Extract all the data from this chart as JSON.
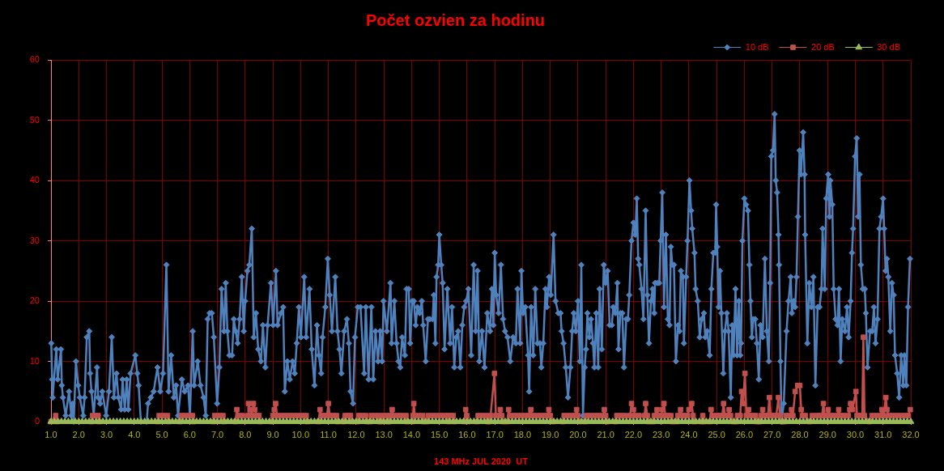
{
  "chart_data": {
    "type": "line",
    "title": "Počet ozvien za hodinu",
    "xlabel": "143 MHz JUL 2020  UT",
    "xlim": [
      1,
      32
    ],
    "xticks": [
      {
        "value": 1,
        "label": "1.0"
      },
      {
        "value": 2,
        "label": "2.0"
      },
      {
        "value": 3,
        "label": "3.0"
      },
      {
        "value": 4,
        "label": "4.0"
      },
      {
        "value": 5,
        "label": "5.0"
      },
      {
        "value": 6,
        "label": "6.0"
      },
      {
        "value": 7,
        "label": "7.0"
      },
      {
        "value": 8,
        "label": "8.0"
      },
      {
        "value": 9,
        "label": "9.0"
      },
      {
        "value": 10,
        "label": "10.0"
      },
      {
        "value": 11,
        "label": "11.0"
      },
      {
        "value": 12,
        "label": "12.0"
      },
      {
        "value": 13,
        "label": "13.0"
      },
      {
        "value": 14,
        "label": "14.0"
      },
      {
        "value": 15,
        "label": "15.0"
      },
      {
        "value": 16,
        "label": "16.0"
      },
      {
        "value": 17,
        "label": "17.0"
      },
      {
        "value": 18,
        "label": "18.0"
      },
      {
        "value": 19,
        "label": "19.0"
      },
      {
        "value": 20,
        "label": "20.0"
      },
      {
        "value": 21,
        "label": "21.0"
      },
      {
        "value": 22,
        "label": "22.0"
      },
      {
        "value": 23,
        "label": "23.0"
      },
      {
        "value": 24,
        "label": "24.0"
      },
      {
        "value": 25,
        "label": "25.0"
      },
      {
        "value": 26,
        "label": "26.0"
      },
      {
        "value": 27,
        "label": "27.0"
      },
      {
        "value": 28,
        "label": "28.0"
      },
      {
        "value": 29,
        "label": "29.0"
      },
      {
        "value": 30,
        "label": "30.0"
      },
      {
        "value": 31,
        "label": "31.0"
      },
      {
        "value": 32,
        "label": "32.0"
      }
    ],
    "ylim": [
      0,
      60
    ],
    "yticks": [
      0,
      10,
      20,
      30,
      40,
      50,
      60
    ],
    "grid": true,
    "legend": "top right",
    "series": [
      {
        "name": "10 dB",
        "color": "#4f81bd",
        "marker": "diamond",
        "x": [
          1.01,
          1.04,
          1.06,
          1.19,
          1.24,
          1.36,
          1.39,
          1.43,
          1.53,
          1.65,
          1.73,
          1.78,
          1.82,
          1.9,
          1.98,
          2.04,
          2.16,
          2.21,
          2.29,
          2.38,
          2.41,
          2.46,
          2.54,
          2.66,
          2.7,
          2.77,
          2.85,
          2.99,
          3.09,
          3.19,
          3.27,
          3.36,
          3.43,
          3.53,
          3.58,
          3.66,
          3.73,
          3.79,
          3.87,
          4.04,
          4.11,
          4.16,
          4.24,
          4.45,
          4.5,
          4.6,
          4.7,
          4.84,
          4.94,
          5.04,
          5.16,
          5.24,
          5.33,
          5.43,
          5.51,
          5.58,
          5.72,
          5.82,
          5.94,
          6.01,
          6.11,
          6.16,
          6.29,
          6.39,
          6.5,
          6.58,
          6.65,
          6.72,
          6.8,
          6.87,
          6.99,
          7.07,
          7.15,
          7.24,
          7.3,
          7.36,
          7.43,
          7.53,
          7.59,
          7.66,
          7.73,
          7.8,
          7.88,
          7.95,
          8.0,
          8.08,
          8.15,
          8.24,
          8.31,
          8.39,
          8.47,
          8.57,
          8.64,
          8.73,
          8.81,
          8.93,
          9.01,
          9.11,
          9.17,
          9.29,
          9.37,
          9.43,
          9.52,
          9.61,
          9.71,
          9.79,
          9.86,
          9.94,
          10.01,
          10.13,
          10.2,
          10.32,
          10.4,
          10.5,
          10.59,
          10.66,
          10.74,
          10.79,
          10.89,
          10.98,
          11.05,
          11.13,
          11.25,
          11.33,
          11.4,
          11.47,
          11.57,
          11.67,
          11.74,
          11.8,
          11.89,
          11.96,
          12.06,
          12.16,
          12.29,
          12.35,
          12.45,
          12.55,
          12.62,
          12.7,
          12.79,
          12.87,
          12.94,
          12.99,
          13.11,
          13.24,
          13.28,
          13.38,
          13.46,
          13.53,
          13.59,
          13.66,
          13.76,
          13.82,
          13.9,
          13.95,
          14.02,
          14.08,
          14.15,
          14.21,
          14.29,
          14.37,
          14.42,
          14.51,
          14.59,
          14.66,
          14.76,
          14.8,
          14.86,
          14.9,
          14.96,
          15.0,
          15.07,
          15.12,
          15.19,
          15.29,
          15.39,
          15.46,
          15.54,
          15.61,
          15.68,
          15.76,
          15.83,
          15.9,
          15.97,
          16.05,
          16.15,
          16.24,
          16.31,
          16.38,
          16.44,
          16.54,
          16.63,
          16.73,
          16.83,
          16.9,
          16.95,
          17.0,
          17.05,
          17.14,
          17.22,
          17.3,
          17.37,
          17.46,
          17.56,
          17.66,
          17.76,
          17.82,
          17.92,
          17.96,
          18.02,
          18.1,
          18.2,
          18.24,
          18.31,
          18.39,
          18.46,
          18.54,
          18.63,
          18.68,
          18.75,
          18.83,
          18.88,
          18.96,
          19.02,
          19.12,
          19.19,
          19.29,
          19.37,
          19.41,
          19.48,
          19.56,
          19.64,
          19.73,
          19.79,
          19.85,
          19.92,
          20.0,
          20.07,
          20.12,
          20.18,
          20.24,
          20.29,
          20.34,
          20.41,
          20.47,
          20.54,
          20.59,
          20.66,
          20.73,
          20.78,
          20.86,
          20.93,
          21.0,
          21.07,
          21.14,
          21.22,
          21.27,
          21.35,
          21.42,
          21.46,
          21.53,
          21.6,
          21.66,
          21.74,
          21.8,
          21.85,
          21.93,
          22.0,
          22.07,
          22.12,
          22.17,
          22.21,
          22.29,
          22.36,
          22.44,
          22.5,
          22.56,
          22.63,
          22.69,
          22.75,
          22.78,
          22.86,
          22.93,
          22.98,
          23.04,
          23.1,
          23.17,
          23.24,
          23.3,
          23.35,
          23.4,
          23.46,
          23.53,
          23.61,
          23.66,
          23.71,
          23.78,
          23.82,
          23.9,
          23.95,
          24.02,
          24.08,
          24.12,
          24.2,
          24.24,
          24.32,
          24.39,
          24.46,
          24.54,
          24.59,
          24.66,
          24.75,
          24.81,
          24.88,
          24.95,
          24.98,
          25.02,
          25.07,
          25.12,
          25.17,
          25.24,
          25.3,
          25.37,
          25.43,
          25.51,
          25.56,
          25.61,
          25.68,
          25.74,
          25.8,
          25.85,
          25.88,
          25.93,
          26.0,
          26.06,
          26.13,
          26.18,
          26.22,
          26.27,
          26.32,
          26.39,
          26.45,
          26.52,
          26.58,
          26.66,
          26.74,
          26.81,
          26.88,
          26.93,
          26.97,
          27.03,
          27.09,
          27.13,
          27.18,
          27.23,
          27.25,
          27.3,
          27.34,
          27.42,
          27.52,
          27.59,
          27.67,
          27.71,
          27.78,
          27.83,
          27.88,
          27.93,
          27.99,
          28.04,
          28.12,
          28.17,
          28.19,
          28.27,
          28.34,
          28.42,
          28.49,
          28.56,
          28.64,
          28.71,
          28.78,
          28.82,
          28.9,
          28.95,
          29.02,
          29.07,
          29.1,
          29.17,
          29.22,
          29.29,
          29.36,
          29.41,
          29.47,
          29.53,
          29.63,
          29.7,
          29.76,
          29.83,
          29.88,
          29.92,
          29.99,
          30.05,
          30.1,
          30.15,
          30.2,
          30.27,
          30.34,
          30.38,
          30.44,
          30.53,
          30.61,
          30.67,
          30.73,
          30.8,
          30.87,
          30.93,
          31.0,
          31.04,
          31.09,
          31.14,
          31.19,
          31.26,
          31.32,
          31.38,
          31.43,
          31.51,
          31.58,
          31.65,
          31.73,
          31.77,
          31.84,
          31.9,
          31.97
        ],
        "values": [
          13,
          7,
          4,
          12,
          7,
          12,
          6,
          4,
          1,
          5,
          1,
          3,
          0,
          10,
          6,
          4,
          1,
          4,
          14,
          15,
          8,
          5,
          1,
          9,
          4,
          3,
          5,
          1,
          5,
          14,
          4,
          8,
          4,
          2,
          7,
          2,
          7,
          2,
          8,
          11,
          8,
          6,
          0,
          0,
          3,
          4,
          5,
          9,
          5,
          8,
          26,
          5,
          11,
          4,
          6,
          1,
          7,
          5,
          6,
          1,
          15,
          6,
          10,
          6,
          4,
          1,
          17,
          18,
          18,
          14,
          3,
          9,
          22,
          15,
          23,
          15,
          11,
          11,
          17,
          15,
          13,
          17,
          24,
          15,
          20,
          25,
          26,
          32,
          14,
          18,
          12,
          10,
          16,
          9,
          16,
          23,
          16,
          25,
          16,
          18,
          19,
          5,
          10,
          7,
          10,
          8,
          13,
          19,
          14,
          24,
          14,
          22,
          12,
          6,
          16,
          11,
          8,
          14,
          19,
          27,
          21,
          15,
          24,
          15,
          12,
          8,
          15,
          17,
          13,
          5,
          3,
          14,
          19,
          19,
          8,
          19,
          7,
          19,
          7,
          15,
          10,
          15,
          10,
          20,
          15,
          23,
          13,
          20,
          13,
          10,
          9,
          14,
          11,
          22,
          22,
          13,
          20,
          20,
          16,
          19,
          18,
          20,
          16,
          10,
          17,
          17,
          17,
          21,
          13,
          24,
          26,
          31,
          26,
          23,
          12,
          22,
          13,
          19,
          9,
          14,
          15,
          9,
          16,
          19,
          20,
          22,
          11,
          26,
          15,
          25,
          10,
          15,
          9,
          18,
          15,
          22,
          16,
          28,
          21,
          18,
          26,
          17,
          15,
          14,
          10,
          14,
          13,
          22,
          13,
          25,
          18,
          19,
          11,
          5,
          19,
          11,
          22,
          13,
          13,
          9,
          13,
          22,
          19,
          24,
          21,
          31,
          20,
          18,
          18,
          15,
          13,
          9,
          4,
          9,
          15,
          18,
          15,
          20,
          10,
          26,
          1,
          9,
          12,
          18,
          14,
          17,
          13,
          9,
          18,
          9,
          22,
          12,
          26,
          23,
          25,
          16,
          16,
          19,
          18,
          23,
          12,
          18,
          18,
          9,
          17,
          17,
          21,
          30,
          33,
          31,
          37,
          27,
          26,
          22,
          17,
          35,
          21,
          13,
          20,
          22,
          18,
          23,
          23,
          23,
          30,
          38,
          19,
          31,
          17,
          16,
          29,
          26,
          26,
          10,
          16,
          15,
          25,
          24,
          13,
          24,
          30,
          40,
          35,
          32,
          28,
          22,
          20,
          14,
          17,
          18,
          14,
          15,
          11,
          22,
          28,
          28,
          36,
          29,
          19,
          25,
          18,
          8,
          15,
          18,
          15,
          4,
          16,
          11,
          22,
          11,
          20,
          11,
          13,
          30,
          37,
          36,
          35,
          26,
          20,
          14,
          17,
          17,
          13,
          7,
          16,
          14,
          27,
          15,
          10,
          23,
          44,
          45,
          51,
          40,
          38,
          31,
          26,
          10,
          0,
          3,
          15,
          20,
          24,
          18,
          20,
          19,
          24,
          34,
          45,
          41,
          48,
          41,
          31,
          13,
          23,
          19,
          24,
          6,
          19,
          19,
          22,
          32,
          22,
          37,
          41,
          34,
          40,
          36,
          22,
          17,
          16,
          22,
          10,
          17,
          15,
          19,
          14,
          20,
          28,
          32,
          44,
          47,
          34,
          41,
          26,
          22,
          22,
          18,
          9,
          15,
          15,
          19,
          13,
          17,
          32,
          34,
          37,
          32,
          25,
          27,
          24,
          15,
          23,
          21,
          11,
          8,
          4,
          11,
          6,
          11,
          6,
          19,
          27
        ]
      },
      {
        "name": "20 dB",
        "color": "#c0504d",
        "marker": "square",
        "x": [
          1.0,
          1.17,
          1.21,
          2.45,
          2.5,
          2.6,
          2.7,
          2.74,
          4.85,
          4.9,
          5.05,
          5.2,
          5.24,
          5.65,
          5.7,
          5.85,
          6.0,
          6.1,
          6.14,
          6.85,
          6.9,
          7.05,
          7.2,
          7.24,
          7.65,
          7.7,
          7.75,
          7.9,
          8.1,
          8.12,
          8.18,
          8.24,
          8.3,
          8.35,
          8.4,
          8.5,
          8.54,
          8.95,
          9.0,
          9.05,
          9.1,
          9.15,
          9.3,
          9.45,
          9.6,
          9.75,
          9.9,
          10.05,
          10.2,
          10.24,
          10.65,
          10.7,
          10.75,
          10.85,
          10.95,
          11.0,
          11.05,
          11.18,
          11.3,
          11.34,
          11.55,
          11.6,
          11.7,
          11.8,
          11.84,
          12.05,
          12.1,
          12.22,
          12.35,
          12.39,
          12.5,
          12.55,
          12.68,
          12.8,
          12.84,
          12.9,
          12.95,
          13.1,
          13.14,
          13.18,
          13.22,
          13.3,
          13.35,
          13.5,
          13.65,
          13.8,
          13.84,
          14.02,
          14.05,
          14.08,
          14.12,
          14.26,
          14.4,
          14.44,
          14.55,
          14.6,
          14.75,
          14.9,
          15.05,
          15.2,
          15.3,
          15.34,
          15.4,
          15.5,
          15.54,
          15.9,
          15.95,
          16.0,
          16.04,
          16.35,
          16.4,
          16.55,
          16.7,
          16.74,
          16.8,
          16.85,
          16.99,
          17.04,
          17.16,
          17.2,
          17.25,
          17.3,
          17.45,
          17.5,
          17.55,
          17.68,
          17.8,
          17.95,
          18.08,
          18.2,
          18.3,
          18.35,
          18.5,
          18.65,
          18.8,
          18.9,
          18.95,
          19.0,
          19.1,
          19.45,
          19.5,
          19.65,
          19.8,
          19.9,
          19.95,
          20.0,
          20.05,
          20.25,
          20.3,
          20.45,
          20.6,
          20.75,
          20.9,
          20.95,
          21.0,
          21.05,
          21.35,
          21.4,
          21.55,
          21.7,
          21.88,
          21.93,
          22.0,
          22.05,
          22.2,
          22.4,
          22.44,
          22.5,
          22.55,
          22.7,
          22.75,
          22.85,
          22.9,
          23.0,
          23.05,
          23.1,
          23.15,
          23.25,
          23.35,
          23.4,
          23.55,
          23.6,
          23.7,
          23.75,
          23.85,
          23.95,
          24.0,
          24.1,
          24.15,
          24.2,
          24.45,
          24.5,
          24.55,
          24.75,
          24.8,
          24.85,
          25.0,
          25.1,
          25.2,
          25.25,
          25.3,
          25.4,
          25.45,
          25.5,
          25.6,
          25.7,
          25.75,
          25.85,
          25.9,
          25.95,
          26.02,
          26.07,
          26.15,
          26.2,
          26.3,
          26.4,
          26.45,
          26.55,
          26.6,
          26.66,
          26.7,
          26.78,
          26.85,
          26.9,
          26.95,
          27.05,
          27.15,
          27.23,
          27.28,
          27.35,
          27.45,
          27.5,
          27.58,
          27.65,
          27.7,
          27.75,
          27.83,
          27.92,
          28.0,
          28.05,
          28.1,
          28.2,
          28.35,
          28.45,
          28.6,
          28.7,
          28.8,
          28.85,
          28.9,
          28.97,
          29.02,
          29.1,
          29.22,
          29.35,
          29.4,
          29.45,
          29.6,
          29.75,
          29.8,
          29.83,
          29.9,
          30.02,
          30.06,
          30.15,
          30.25,
          30.29,
          30.33,
          30.5,
          30.6,
          30.75,
          30.9,
          30.96,
          31.02,
          31.1,
          31.14,
          31.2,
          31.35,
          31.5,
          31.65,
          31.8,
          31.9,
          31.98
        ],
        "values": [
          0,
          1,
          0,
          0,
          1,
          1,
          1,
          0,
          0,
          1,
          1,
          1,
          0,
          0,
          1,
          1,
          1,
          1,
          0,
          0,
          1,
          1,
          1,
          0,
          0,
          2,
          1,
          1,
          1,
          3,
          2,
          1,
          3,
          2,
          1,
          1,
          0,
          0,
          1,
          2,
          3,
          1,
          1,
          1,
          1,
          1,
          1,
          1,
          1,
          0,
          0,
          2,
          1,
          1,
          1,
          3,
          1,
          1,
          1,
          0,
          0,
          1,
          1,
          1,
          0,
          0,
          1,
          1,
          1,
          0,
          0,
          1,
          1,
          1,
          0,
          0,
          1,
          1,
          0,
          0,
          1,
          2,
          1,
          1,
          1,
          1,
          0,
          0,
          1,
          3,
          1,
          1,
          1,
          0,
          0,
          1,
          1,
          1,
          1,
          1,
          1,
          0,
          1,
          1,
          0,
          0,
          2,
          1,
          0,
          0,
          1,
          1,
          1,
          0,
          0,
          1,
          8,
          1,
          1,
          2,
          1,
          0,
          0,
          2,
          1,
          1,
          1,
          1,
          1,
          1,
          2,
          1,
          1,
          1,
          1,
          1,
          2,
          1,
          0,
          0,
          1,
          1,
          1,
          1,
          2,
          1,
          0,
          0,
          1,
          1,
          1,
          1,
          1,
          2,
          1,
          0,
          0,
          1,
          1,
          1,
          1,
          3,
          2,
          1,
          1,
          1,
          3,
          1,
          0,
          0,
          1,
          2,
          1,
          1,
          2,
          3,
          1,
          1,
          1,
          0,
          0,
          1,
          2,
          1,
          1,
          1,
          2,
          3,
          1,
          0,
          0,
          1,
          0,
          0,
          2,
          1,
          1,
          1,
          1,
          3,
          1,
          1,
          2,
          1,
          0,
          0,
          1,
          1,
          5,
          3,
          8,
          1,
          2,
          1,
          1,
          1,
          0,
          0,
          1,
          2,
          1,
          1,
          1,
          4,
          1,
          1,
          1,
          4,
          1,
          0,
          0,
          1,
          1,
          1,
          2,
          1,
          5,
          6,
          6,
          2,
          1,
          1,
          0,
          1,
          1,
          1,
          1,
          3,
          1,
          1,
          2,
          1,
          1,
          1,
          2,
          1,
          1,
          1,
          2,
          3,
          2,
          5,
          1,
          1,
          1,
          14,
          1,
          0,
          1,
          1,
          1,
          2,
          1,
          4,
          2,
          1,
          1,
          1,
          1,
          1,
          1,
          2
        ]
      },
      {
        "name": "30 dB",
        "color": "#9bbb59",
        "marker": "triangle",
        "x": [
          1,
          1.125,
          1.25,
          1.375,
          1.5,
          1.625,
          1.75,
          1.875,
          2,
          2.125,
          2.25,
          2.375,
          2.5,
          2.625,
          2.75,
          2.875,
          3,
          3.125,
          3.25,
          3.375,
          3.5,
          3.625,
          3.75,
          3.875,
          4,
          4.125,
          4.25,
          4.375,
          4.5,
          4.625,
          4.75,
          4.875,
          5,
          5.125,
          5.25,
          5.375,
          5.5,
          5.625,
          5.75,
          5.875,
          6,
          6.125,
          6.25,
          6.375,
          6.5,
          6.625,
          6.75,
          6.875,
          7,
          7.125,
          7.25,
          7.375,
          7.5,
          7.625,
          7.75,
          7.875,
          8,
          8.125,
          8.25,
          8.375,
          8.5,
          8.625,
          8.75,
          8.875,
          9,
          9.125,
          9.25,
          9.375,
          9.5,
          9.625,
          9.75,
          9.875,
          10,
          10.125,
          10.25,
          10.375,
          10.5,
          10.625,
          10.75,
          10.875,
          11,
          11.125,
          11.25,
          11.375,
          11.5,
          11.625,
          11.75,
          11.875,
          12,
          12.125,
          12.25,
          12.375,
          12.5,
          12.625,
          12.75,
          12.875,
          13,
          13.125,
          13.25,
          13.375,
          13.5,
          13.625,
          13.75,
          13.875,
          14,
          14.125,
          14.25,
          14.375,
          14.5,
          14.625,
          14.75,
          14.875,
          15,
          15.125,
          15.25,
          15.375,
          15.5,
          15.625,
          15.75,
          15.875,
          16,
          16.125,
          16.25,
          16.375,
          16.5,
          16.625,
          16.75,
          16.875,
          17,
          17.125,
          17.25,
          17.375,
          17.5,
          17.625,
          17.75,
          17.875,
          18,
          18.125,
          18.25,
          18.375,
          18.5,
          18.625,
          18.75,
          18.875,
          19,
          19.125,
          19.25,
          19.375,
          19.5,
          19.625,
          19.75,
          19.875,
          20,
          20.125,
          20.25,
          20.375,
          20.5,
          20.625,
          20.75,
          20.875,
          21,
          21.125,
          21.25,
          21.375,
          21.5,
          21.625,
          21.75,
          21.875,
          22,
          22.125,
          22.25,
          22.375,
          22.5,
          22.625,
          22.75,
          22.875,
          23,
          23.125,
          23.25,
          23.375,
          23.5,
          23.625,
          23.75,
          23.875,
          24,
          24.125,
          24.25,
          24.375,
          24.5,
          24.625,
          24.75,
          24.875,
          25,
          25.125,
          25.25,
          25.375,
          25.5,
          25.625,
          25.75,
          25.875,
          26,
          26.125,
          26.25,
          26.375,
          26.5,
          26.625,
          26.75,
          26.875,
          27,
          27.125,
          27.25,
          27.375,
          27.5,
          27.625,
          27.75,
          27.875,
          28,
          28.125,
          28.25,
          28.375,
          28.5,
          28.625,
          28.75,
          28.875,
          29,
          29.125,
          29.25,
          29.375,
          29.5,
          29.625,
          29.75,
          29.875,
          30,
          30.125,
          30.25,
          30.375,
          30.5,
          30.625,
          30.75,
          30.875,
          31,
          31.125,
          31.25,
          31.375,
          31.5,
          31.625,
          31.75,
          31.875,
          32
        ],
        "values": [
          0,
          0,
          0,
          0,
          0,
          0,
          0,
          0,
          0,
          0,
          0,
          0,
          0,
          0,
          0,
          0,
          0,
          0,
          0,
          0,
          0,
          0,
          0,
          0,
          0,
          0,
          0,
          0,
          0,
          0,
          0,
          0,
          0,
          0,
          0,
          0,
          0,
          0,
          0,
          0,
          0,
          0,
          0,
          0,
          0,
          0,
          0,
          0,
          0,
          0,
          0,
          0,
          0,
          0,
          0,
          0,
          0,
          0,
          0,
          0,
          0,
          0,
          0,
          0,
          0,
          0,
          0,
          0,
          0,
          0,
          0,
          0,
          0,
          0,
          0,
          0,
          0,
          0,
          0,
          0,
          0,
          0,
          0,
          0,
          0,
          0,
          0,
          0,
          0,
          0,
          0,
          0,
          0,
          0,
          0,
          0,
          0,
          0,
          0,
          0,
          0,
          0,
          0,
          0,
          0,
          0,
          0,
          0,
          0,
          0,
          0,
          0,
          0,
          0,
          0,
          0,
          0,
          0,
          0,
          0,
          0,
          0,
          0,
          0,
          0,
          0,
          0,
          0,
          0,
          0,
          0,
          0,
          0,
          0,
          0,
          0,
          0,
          0,
          0,
          0,
          0,
          0,
          0,
          0,
          0,
          0,
          0,
          0,
          0,
          0,
          0,
          0,
          0,
          0,
          0,
          0,
          0,
          0,
          0,
          0,
          0,
          0,
          0,
          0,
          0,
          0,
          0,
          0,
          0,
          0,
          0,
          0,
          0,
          0,
          0,
          0,
          0,
          0,
          0,
          0,
          0,
          0,
          0,
          0,
          0,
          0,
          0,
          0,
          0,
          0,
          0,
          0,
          0,
          0,
          0,
          0,
          0,
          0,
          0,
          0,
          0,
          0,
          0,
          0,
          0,
          0,
          0,
          0,
          0,
          0,
          0,
          0,
          0,
          0,
          0,
          0,
          0,
          0,
          0,
          0,
          0,
          0,
          0,
          0,
          0,
          0,
          0,
          0,
          0,
          0,
          0,
          0,
          0,
          0,
          0,
          0,
          0,
          0,
          0,
          0,
          0,
          0,
          0,
          0,
          0,
          0,
          0,
          0,
          0
        ]
      }
    ]
  }
}
